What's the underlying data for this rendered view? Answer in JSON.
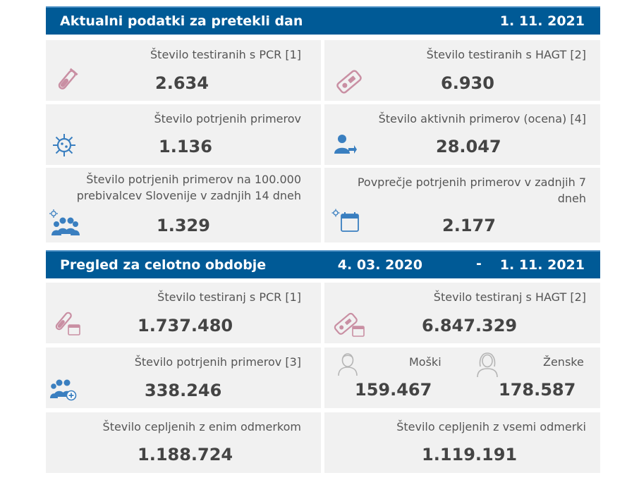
{
  "daily": {
    "title": "Aktualni podatki za pretekli dan",
    "date": "1. 11. 2021",
    "pcr": {
      "label": "Število testiranih s PCR [1]",
      "value": "2.634"
    },
    "hagt": {
      "label": "Število testiranih s HAGT [2]",
      "value": "6.930"
    },
    "confirmed": {
      "label": "Število potrjenih primerov",
      "value": "1.136"
    },
    "active": {
      "label": "Število aktivnih primerov (ocena) [4]",
      "value": "28.047"
    },
    "per100k": {
      "label": "Število potrjenih primerov na 100.000 prebivalcev Slovenije v zadnjih 14 dneh",
      "value": "1.329"
    },
    "avg7": {
      "label": "Povprečje potrjenih primerov v zadnjih 7 dneh",
      "value": "2.177"
    }
  },
  "total": {
    "title": "Pregled za celotno obdobje",
    "date_from": "4. 03. 2020",
    "dash": "-",
    "date_to": "1. 11. 2021",
    "pcr": {
      "label": "Število testiranj s PCR [1]",
      "value": "1.737.480"
    },
    "hagt": {
      "label": "Število testiranj s HAGT [2]",
      "value": "6.847.329"
    },
    "confirmed": {
      "label": "Število potrjenih primerov [3]",
      "value": "338.246"
    },
    "men": {
      "label": "Moški",
      "value": "159.467"
    },
    "women": {
      "label": "Ženske",
      "value": "178.587"
    },
    "vacc1": {
      "label": "Število cepljenih z enim odmerkom",
      "value": "1.188.724"
    },
    "vaccall": {
      "label": "Število cepljenih z vsemi odmerki",
      "value": "1.119.191"
    }
  },
  "colors": {
    "header": "#005a96",
    "card": "#f1f1f1",
    "test_icon": "#c98fa3",
    "people_icon": "#3a7fc0",
    "outline_icon": "#b5b5b5"
  },
  "icons": {
    "pcr": "test-tube-icon",
    "hagt": "antigen-test-icon",
    "virus": "virus-icon",
    "active": "person-arrow-icon",
    "group": "people-group-icon",
    "calendar": "calendar-icon",
    "male": "man-outline-icon",
    "female": "woman-outline-icon"
  }
}
